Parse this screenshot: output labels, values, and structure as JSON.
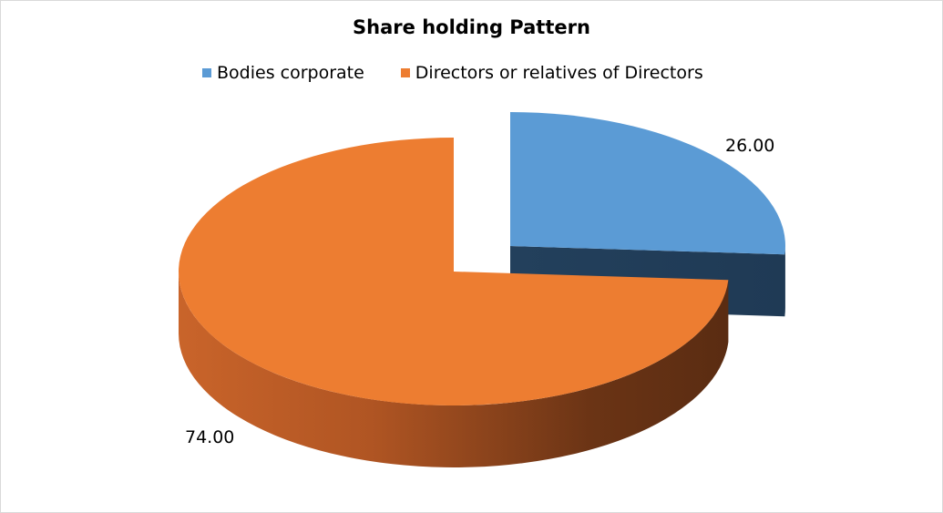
{
  "chart_data": {
    "type": "pie",
    "title": "Share holding Pattern",
    "legend_position": "top",
    "slices": [
      {
        "name": "Bodies corporate",
        "value": 26.0,
        "label": "26.00",
        "color": "#5b9bd5",
        "exploded": true
      },
      {
        "name": "Directors or relatives of Directors",
        "value": 74.0,
        "label": "74.00",
        "color": "#ed7d31",
        "exploded": false
      }
    ]
  }
}
